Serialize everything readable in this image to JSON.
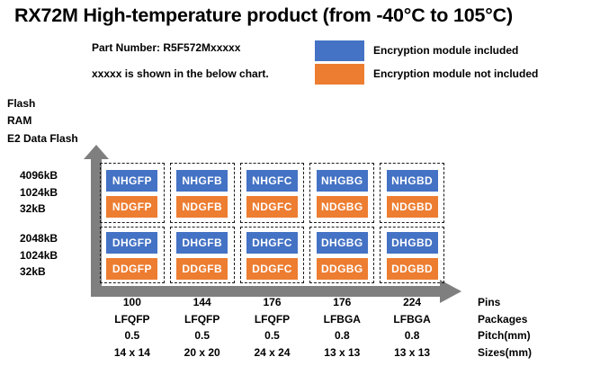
{
  "title": "RX72M High-temperature product (from -40°C to 105°C)",
  "header": {
    "part_number": "Part Number: R5F572Mxxxxx",
    "note": "xxxxx is shown in the below chart."
  },
  "legend": {
    "included": {
      "label": "Encryption module included",
      "color": "#4472C4"
    },
    "not_included": {
      "label": "Encryption module not included",
      "color": "#ED7D31"
    }
  },
  "y_axis": {
    "header": [
      "Flash",
      "RAM",
      "E2 Data Flash"
    ],
    "groups": [
      [
        "4096kB",
        "1024kB",
        "32kB"
      ],
      [
        "2048kB",
        "1024kB",
        "32kB"
      ]
    ]
  },
  "grid": {
    "rows": [
      {
        "cells": [
          {
            "included": "NHGFP",
            "not_included": "NDGFP"
          },
          {
            "included": "NHGFB",
            "not_included": "NDGFB"
          },
          {
            "included": "NHGFC",
            "not_included": "NDGFC"
          },
          {
            "included": "NHGBG",
            "not_included": "NDGBG"
          },
          {
            "included": "NHGBD",
            "not_included": "NDGBD"
          }
        ]
      },
      {
        "cells": [
          {
            "included": "DHGFP",
            "not_included": "DDGFP"
          },
          {
            "included": "DHGFB",
            "not_included": "DDGFB"
          },
          {
            "included": "DHGFC",
            "not_included": "DDGFC"
          },
          {
            "included": "DHGBG",
            "not_included": "DDGBG"
          },
          {
            "included": "DHGBD",
            "not_included": "DDGBD"
          }
        ]
      }
    ]
  },
  "table": {
    "rows": [
      {
        "label": "Pins",
        "values": [
          "100",
          "144",
          "176",
          "176",
          "224"
        ]
      },
      {
        "label": "Packages",
        "values": [
          "LFQFP",
          "LFQFP",
          "LFQFP",
          "LFBGA",
          "LFBGA"
        ]
      },
      {
        "label": "Pitch(mm)",
        "values": [
          "0.5",
          "0.5",
          "0.5",
          "0.8",
          "0.8"
        ]
      },
      {
        "label": "Sizes(mm)",
        "values": [
          "14 x 14",
          "20 x 20",
          "24 x 24",
          "13 x 13",
          "13 x 13"
        ]
      }
    ]
  },
  "colors": {
    "included_blue": "#4472C4",
    "not_included_orange": "#ED7D31",
    "arrow_gray": "#7F7F7F"
  }
}
